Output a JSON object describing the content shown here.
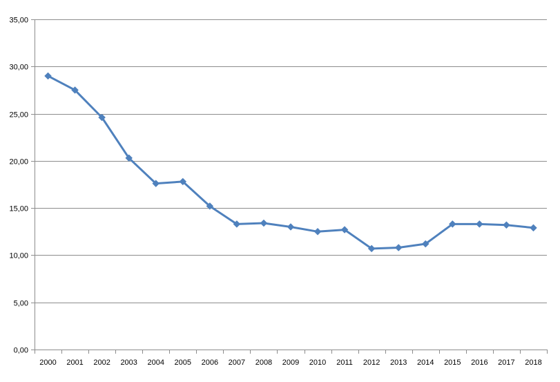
{
  "chart_data": {
    "type": "line",
    "categories": [
      "2000",
      "2001",
      "2002",
      "2003",
      "2004",
      "2005",
      "2006",
      "2007",
      "2008",
      "2009",
      "2010",
      "2011",
      "2012",
      "2013",
      "2014",
      "2015",
      "2016",
      "2017",
      "2018"
    ],
    "series": [
      {
        "values": [
          29.0,
          27.5,
          24.6,
          20.3,
          17.6,
          17.8,
          15.2,
          13.3,
          13.4,
          13.0,
          12.5,
          12.7,
          10.7,
          10.8,
          11.2,
          13.3,
          13.3,
          13.2,
          12.9
        ],
        "color": "#4f81bd",
        "marker": "diamond"
      }
    ],
    "y_ticks": [
      "0,00",
      "5,00",
      "10,00",
      "15,00",
      "20,00",
      "25,00",
      "30,00",
      "35,00"
    ],
    "ylim": [
      0,
      35
    ],
    "grid": "horizontal",
    "legend": "none",
    "title": "",
    "xlabel": "",
    "ylabel": ""
  }
}
